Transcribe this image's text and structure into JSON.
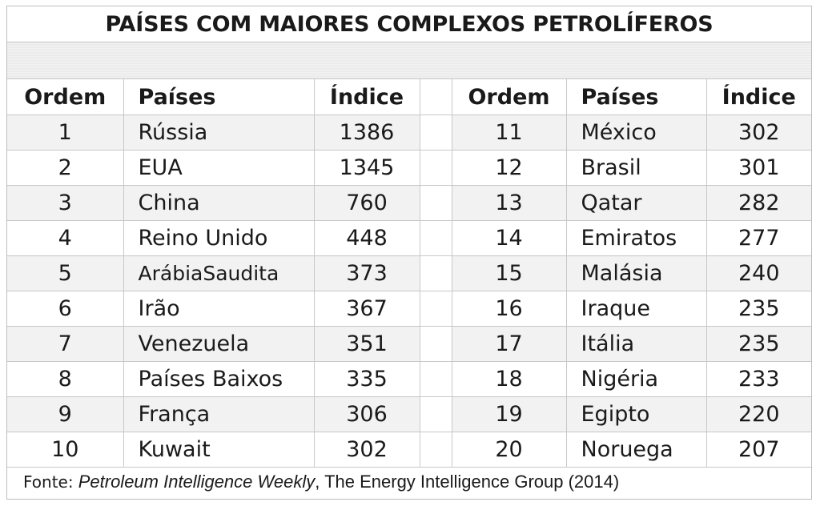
{
  "title": "PAÍSES COM MAIORES COMPLEXOS PETROLÍFEROS",
  "headers": {
    "left": [
      "Ordem",
      "Países",
      "Índice"
    ],
    "right": [
      "Ordem",
      "Países",
      "Índice"
    ]
  },
  "rows": [
    {
      "left": [
        "1",
        "Rússia",
        "1386"
      ],
      "right": [
        "11",
        "México",
        "302"
      ]
    },
    {
      "left": [
        "2",
        "EUA",
        "1345"
      ],
      "right": [
        "12",
        "Brasil",
        "301"
      ]
    },
    {
      "left": [
        "3",
        "China",
        "760"
      ],
      "right": [
        "13",
        "Qatar",
        "282"
      ]
    },
    {
      "left": [
        "4",
        "Reino Unido",
        "448"
      ],
      "right": [
        "14",
        "Emiratos",
        "277"
      ]
    },
    {
      "left": [
        "5",
        "ArábiaSaudita",
        "373"
      ],
      "right": [
        "15",
        "Malásia",
        "240"
      ]
    },
    {
      "left": [
        "6",
        "Irão",
        "367"
      ],
      "right": [
        "16",
        "Iraque",
        "235"
      ]
    },
    {
      "left": [
        "7",
        "Venezuela",
        "351"
      ],
      "right": [
        "17",
        "Itália",
        "235"
      ]
    },
    {
      "left": [
        "8",
        "Países Baixos",
        "335"
      ],
      "right": [
        "18",
        "Nigéria",
        "233"
      ]
    },
    {
      "left": [
        "9",
        "França",
        "306"
      ],
      "right": [
        "19",
        "Egipto",
        "220"
      ]
    },
    {
      "left": [
        "10",
        "Kuwait",
        "302"
      ],
      "right": [
        "20",
        "Noruega",
        "207"
      ]
    }
  ],
  "source": {
    "label": "Fonte:",
    "publication": "Petroleum Intelligence Weekly",
    "rest": ", The Energy Intelligence Group (2014)"
  }
}
